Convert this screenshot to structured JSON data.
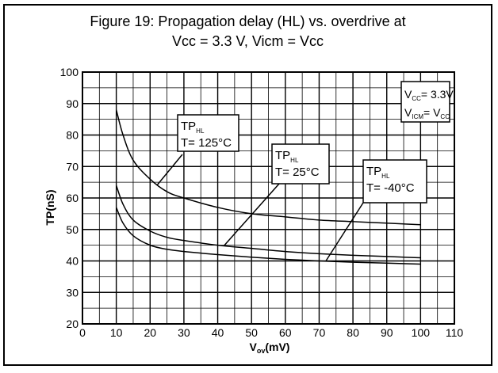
{
  "chart_data": {
    "type": "line",
    "title": {
      "line1": "Figure 19: Propagation delay (HL) vs. overdrive at",
      "line2": "Vcc = 3.3 V, Vicm = Vcc"
    },
    "xlabel": {
      "main": "V",
      "sub": "ov",
      "rest": "(mV)"
    },
    "ylabel": "TP(nS)",
    "xlim": [
      0,
      110
    ],
    "ylim": [
      20,
      100
    ],
    "xticks": [
      "0",
      "10",
      "20",
      "30",
      "40",
      "50",
      "60",
      "70",
      "80",
      "90",
      "100",
      "110"
    ],
    "yticks": [
      "20",
      "30",
      "40",
      "50",
      "60",
      "70",
      "80",
      "90",
      "100"
    ],
    "grid": true,
    "minor_grid_x": 5,
    "minor_grid_y": 5,
    "series": [
      {
        "name": "TP HL T= 125°C",
        "x": [
          10,
          12,
          15,
          20,
          25,
          30,
          40,
          50,
          60,
          70,
          80,
          90,
          100
        ],
        "y": [
          88,
          80,
          72,
          66,
          62,
          60,
          57,
          55,
          54,
          53,
          52.5,
          52,
          51.5
        ]
      },
      {
        "name": "TP HL T= 25°C",
        "x": [
          10,
          12,
          15,
          20,
          25,
          30,
          40,
          50,
          60,
          70,
          80,
          90,
          100
        ],
        "y": [
          64,
          58,
          53,
          49.5,
          47.5,
          46.5,
          45,
          44,
          43,
          42.3,
          41.8,
          41.4,
          41
        ]
      },
      {
        "name": "TP HL T= -40°C",
        "x": [
          10,
          12,
          15,
          20,
          25,
          30,
          40,
          50,
          60,
          70,
          80,
          90,
          100
        ],
        "y": [
          57,
          52,
          48,
          45,
          43.7,
          43,
          42,
          41.2,
          40.5,
          40,
          39.6,
          39.3,
          39
        ]
      }
    ],
    "annotations": [
      {
        "id": "t125",
        "line1_main": "TP",
        "line1_sub": "HL",
        "line2": "T= 125°C",
        "pointer_to": [
          22,
          64
        ]
      },
      {
        "id": "t25",
        "line1_main": "TP",
        "line1_sub": "HL",
        "line2": "T= 25°C",
        "pointer_to": [
          42,
          45
        ]
      },
      {
        "id": "tm40",
        "line1_main": "TP",
        "line1_sub": "HL",
        "line2": "T= -40°C",
        "pointer_to": [
          72,
          40
        ]
      }
    ],
    "conditions": {
      "line1": {
        "main": "V",
        "sub": "CC",
        "rest": "= 3.3V"
      },
      "line2": {
        "main": "V",
        "sub": "ICM",
        "mid": "= V",
        "sub2": "CC"
      }
    }
  }
}
